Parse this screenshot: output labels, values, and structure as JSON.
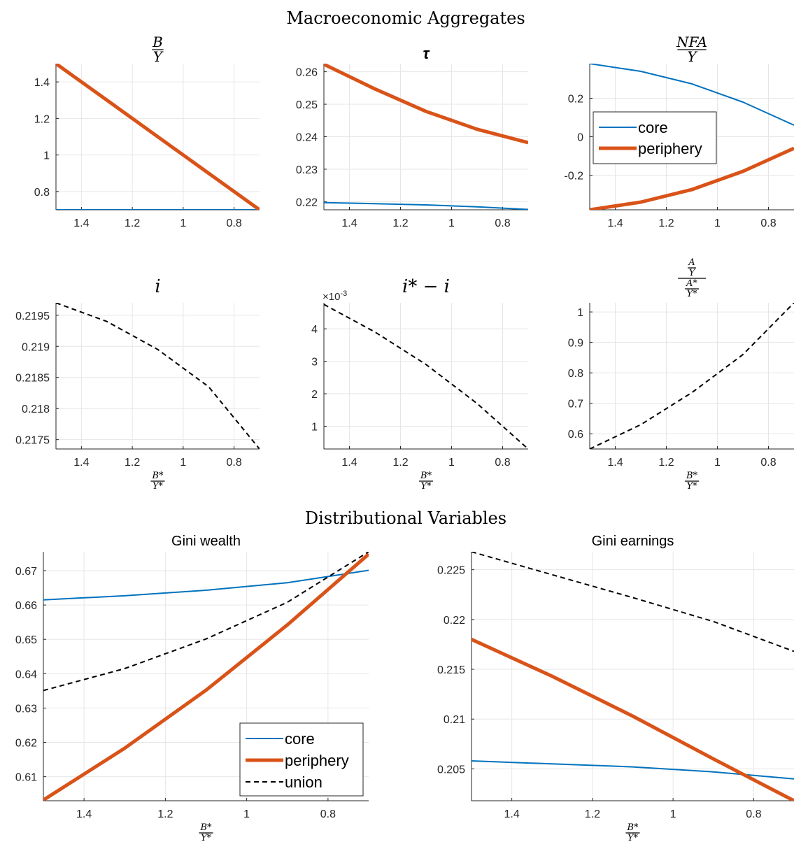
{
  "figure": {
    "section_titles": [
      "Macroeconomic Aggregates",
      "Distributional Variables"
    ]
  },
  "colors": {
    "core": "#0072BD",
    "periphery": "#D95319",
    "union": "#000000",
    "grid": "#e6e6e6",
    "axis": "#262626"
  },
  "chart_data": [
    {
      "id": "by",
      "type": "line",
      "title": "B/Y",
      "title_num": "B",
      "title_den": "Y",
      "xlabel": "",
      "xlabel_num": "",
      "xlabel_den": "",
      "x_reversed": true,
      "xlim": [
        0.7,
        1.5
      ],
      "ylim": [
        0.7,
        1.5
      ],
      "xticks": [
        1.4,
        1.2,
        1,
        0.8
      ],
      "xtick_labels": [
        "1.4",
        "1.2",
        "1",
        "0.8"
      ],
      "yticks": [
        0.8,
        1.0,
        1.2,
        1.4
      ],
      "ytick_labels": [
        "0.8",
        "1",
        "1.2",
        "1.4"
      ],
      "grid": true,
      "series": [
        {
          "name": "core",
          "style": "core",
          "x": [
            1.5,
            1.3,
            1.1,
            0.9,
            0.7
          ],
          "y": [
            0.7,
            0.7,
            0.7,
            0.7,
            0.7
          ]
        },
        {
          "name": "periphery",
          "style": "periphery",
          "x": [
            1.5,
            1.3,
            1.1,
            0.9,
            0.7
          ],
          "y": [
            1.5,
            1.3,
            1.1,
            0.9,
            0.7
          ]
        }
      ]
    },
    {
      "id": "tau",
      "type": "line",
      "title": "τ",
      "xlabel": "",
      "xlabel_num": "",
      "xlabel_den": "",
      "x_reversed": true,
      "xlim": [
        0.7,
        1.5
      ],
      "ylim": [
        0.2175,
        0.2625
      ],
      "xticks": [
        1.4,
        1.2,
        1,
        0.8
      ],
      "xtick_labels": [
        "1.4",
        "1.2",
        "1",
        "0.8"
      ],
      "yticks": [
        0.22,
        0.23,
        0.24,
        0.25,
        0.26
      ],
      "ytick_labels": [
        "0.22",
        "0.23",
        "0.24",
        "0.25",
        "0.26"
      ],
      "grid": true,
      "series": [
        {
          "name": "core",
          "style": "core",
          "x": [
            1.5,
            1.3,
            1.1,
            0.9,
            0.7
          ],
          "y": [
            0.2197,
            0.2194,
            0.219,
            0.2184,
            0.2176
          ]
        },
        {
          "name": "periphery",
          "style": "periphery",
          "x": [
            1.5,
            1.3,
            1.1,
            0.9,
            0.7
          ],
          "y": [
            0.2623,
            0.2547,
            0.2478,
            0.2423,
            0.2382
          ]
        }
      ]
    },
    {
      "id": "nfa",
      "type": "line",
      "title": "NFA/Y",
      "title_num": "NFA",
      "title_den": "Y",
      "xlabel": "",
      "xlabel_num": "",
      "xlabel_den": "",
      "x_reversed": true,
      "xlim": [
        0.7,
        1.5
      ],
      "ylim": [
        -0.38,
        0.38
      ],
      "xticks": [
        1.4,
        1.2,
        1,
        0.8
      ],
      "xtick_labels": [
        "1.4",
        "1.2",
        "1",
        "0.8"
      ],
      "yticks": [
        -0.2,
        0,
        0.2
      ],
      "ytick_labels": [
        "-0.2",
        "0",
        "0.2"
      ],
      "grid": true,
      "legend": {
        "entries": [
          "core",
          "periphery"
        ],
        "position": "middle-left"
      },
      "series": [
        {
          "name": "core",
          "style": "core",
          "x": [
            1.5,
            1.3,
            1.1,
            0.9,
            0.7
          ],
          "y": [
            0.38,
            0.34,
            0.275,
            0.18,
            0.06
          ]
        },
        {
          "name": "periphery",
          "style": "periphery",
          "x": [
            1.5,
            1.3,
            1.1,
            0.9,
            0.7
          ],
          "y": [
            -0.38,
            -0.34,
            -0.275,
            -0.18,
            -0.06
          ]
        }
      ]
    },
    {
      "id": "i",
      "type": "line",
      "title": "i",
      "xlabel": "B*/Y*",
      "xlabel_num": "B*",
      "xlabel_den": "Y*",
      "x_reversed": true,
      "xlim": [
        0.7,
        1.5
      ],
      "ylim": [
        0.21735,
        0.2197
      ],
      "xticks": [
        1.4,
        1.2,
        1,
        0.8
      ],
      "xtick_labels": [
        "1.4",
        "1.2",
        "1",
        "0.8"
      ],
      "yticks": [
        0.2175,
        0.218,
        0.2185,
        0.219,
        0.2195
      ],
      "ytick_labels": [
        "0.2175",
        "0.218",
        "0.2185",
        "0.219",
        "0.2195"
      ],
      "grid": true,
      "series": [
        {
          "name": "union",
          "style": "union",
          "x": [
            1.5,
            1.3,
            1.1,
            0.9,
            0.7
          ],
          "y": [
            0.2197,
            0.2194,
            0.21895,
            0.21835,
            0.21735
          ]
        }
      ]
    },
    {
      "id": "spread",
      "type": "line",
      "title": "i* − i",
      "xlabel": "B*/Y*",
      "xlabel_num": "B*",
      "xlabel_den": "Y*",
      "exponent_label": "×10-3",
      "exponent_base": "×10",
      "exponent_power": "-3",
      "x_reversed": true,
      "xlim": [
        0.7,
        1.5
      ],
      "ylim": [
        0.3,
        4.8
      ],
      "xticks": [
        1.4,
        1.2,
        1,
        0.8
      ],
      "xtick_labels": [
        "1.4",
        "1.2",
        "1",
        "0.8"
      ],
      "yticks": [
        1,
        2,
        3,
        4
      ],
      "ytick_labels": [
        "1",
        "2",
        "3",
        "4"
      ],
      "grid": true,
      "series": [
        {
          "name": "union",
          "style": "union",
          "x": [
            1.5,
            1.3,
            1.1,
            0.9,
            0.7
          ],
          "y": [
            4.75,
            3.9,
            2.9,
            1.7,
            0.3
          ]
        }
      ]
    },
    {
      "id": "aratio",
      "type": "line",
      "title": "(A/Y)/(A*/Y*)",
      "title_num_top": "A",
      "title_num_bot": "Y",
      "title_den_top": "A*",
      "title_den_bot": "Y*",
      "xlabel": "B*/Y*",
      "xlabel_num": "B*",
      "xlabel_den": "Y*",
      "x_reversed": true,
      "xlim": [
        0.7,
        1.5
      ],
      "ylim": [
        0.55,
        1.03
      ],
      "xticks": [
        1.4,
        1.2,
        1,
        0.8
      ],
      "xtick_labels": [
        "1.4",
        "1.2",
        "1",
        "0.8"
      ],
      "yticks": [
        0.6,
        0.7,
        0.8,
        0.9,
        1.0
      ],
      "ytick_labels": [
        "0.6",
        "0.7",
        "0.8",
        "0.9",
        "1"
      ],
      "grid": true,
      "series": [
        {
          "name": "union",
          "style": "union",
          "x": [
            1.5,
            1.3,
            1.1,
            0.9,
            0.7
          ],
          "y": [
            0.55,
            0.63,
            0.735,
            0.86,
            1.03
          ]
        }
      ]
    },
    {
      "id": "giniw",
      "type": "line",
      "title": "Gini wealth",
      "xlabel": "B*/Y*",
      "xlabel_num": "B*",
      "xlabel_den": "Y*",
      "x_reversed": true,
      "xlim": [
        0.7,
        1.5
      ],
      "ylim": [
        0.603,
        0.6755
      ],
      "xticks": [
        1.4,
        1.2,
        1,
        0.8
      ],
      "xtick_labels": [
        "1.4",
        "1.2",
        "1",
        "0.8"
      ],
      "yticks": [
        0.61,
        0.62,
        0.63,
        0.64,
        0.65,
        0.66,
        0.67
      ],
      "ytick_labels": [
        "0.61",
        "0.62",
        "0.63",
        "0.64",
        "0.65",
        "0.66",
        "0.67"
      ],
      "grid": true,
      "legend": {
        "entries": [
          "core",
          "periphery",
          "union"
        ],
        "position": "bottom-right"
      },
      "series": [
        {
          "name": "core",
          "style": "core",
          "x": [
            1.5,
            1.3,
            1.1,
            0.9,
            0.7
          ],
          "y": [
            0.6615,
            0.6627,
            0.6643,
            0.6665,
            0.6701
          ]
        },
        {
          "name": "periphery",
          "style": "periphery",
          "x": [
            1.5,
            1.3,
            1.1,
            0.9,
            0.7
          ],
          "y": [
            0.6032,
            0.6183,
            0.6352,
            0.6542,
            0.6748
          ]
        },
        {
          "name": "union",
          "style": "union",
          "x": [
            1.5,
            1.3,
            1.1,
            0.9,
            0.7
          ],
          "y": [
            0.6351,
            0.6415,
            0.6501,
            0.6608,
            0.6755
          ]
        }
      ]
    },
    {
      "id": "ginie",
      "type": "line",
      "title": "Gini earnings",
      "xlabel": "B*/Y*",
      "xlabel_num": "B*",
      "xlabel_den": "Y*",
      "x_reversed": true,
      "xlim": [
        0.7,
        1.5
      ],
      "ylim": [
        0.2018,
        0.2268
      ],
      "xticks": [
        1.4,
        1.2,
        1,
        0.8
      ],
      "xtick_labels": [
        "1.4",
        "1.2",
        "1",
        "0.8"
      ],
      "yticks": [
        0.205,
        0.21,
        0.215,
        0.22,
        0.225
      ],
      "ytick_labels": [
        "0.205",
        "0.21",
        "0.215",
        "0.22",
        "0.225"
      ],
      "grid": true,
      "series": [
        {
          "name": "core",
          "style": "core",
          "x": [
            1.5,
            1.3,
            1.1,
            0.9,
            0.7
          ],
          "y": [
            0.2058,
            0.2055,
            0.2052,
            0.2047,
            0.204
          ]
        },
        {
          "name": "periphery",
          "style": "periphery",
          "x": [
            1.5,
            1.3,
            1.1,
            0.9,
            0.7
          ],
          "y": [
            0.218,
            0.2143,
            0.2103,
            0.206,
            0.2018
          ]
        },
        {
          "name": "union",
          "style": "union",
          "x": [
            1.5,
            1.3,
            1.1,
            0.9,
            0.7
          ],
          "y": [
            0.2268,
            0.2245,
            0.2222,
            0.2198,
            0.2168
          ]
        }
      ]
    }
  ]
}
